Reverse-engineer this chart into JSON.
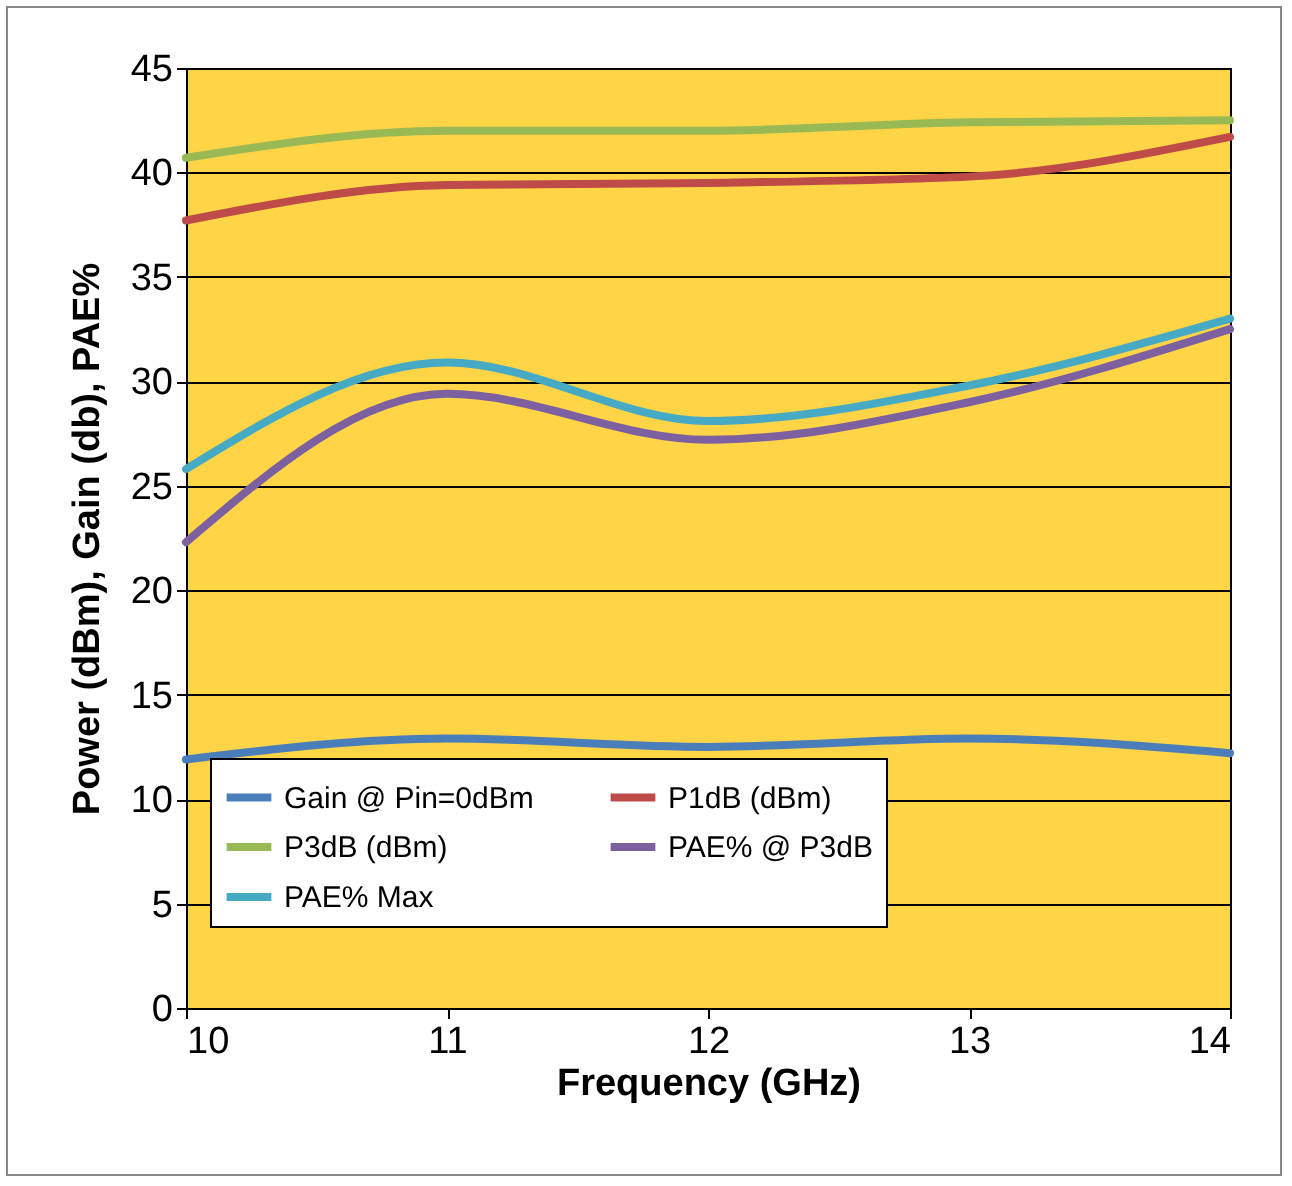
{
  "chart_data": {
    "type": "line",
    "xlabel": "Frequency (GHz)",
    "ylabel": "Power (dBm), Gain (db),  PAE%",
    "x": [
      10,
      11,
      12,
      13,
      14
    ],
    "series": [
      {
        "name": "Gain @ Pin=0dBm",
        "color": "#4a7ebb",
        "values": [
          11.9,
          12.9,
          12.5,
          12.9,
          12.2
        ]
      },
      {
        "name": "P1dB (dBm)",
        "color": "#be4b48",
        "values": [
          37.7,
          39.4,
          39.5,
          39.8,
          41.7
        ]
      },
      {
        "name": "P3dB (dBm)",
        "color": "#98b954",
        "values": [
          40.7,
          42.0,
          42.0,
          42.4,
          42.5
        ]
      },
      {
        "name": "PAE% @ P3dB",
        "color": "#7d60a0",
        "values": [
          22.3,
          29.4,
          27.2,
          29.0,
          32.5
        ]
      },
      {
        "name": "PAE% Max",
        "color": "#46aac5",
        "values": [
          25.8,
          30.9,
          28.1,
          29.8,
          33.0
        ]
      }
    ],
    "xlim": [
      10,
      14
    ],
    "xticks": [
      10,
      11,
      12,
      13,
      14
    ],
    "ylim": [
      0,
      45
    ],
    "yticks": [
      0,
      5,
      10,
      15,
      20,
      25,
      30,
      35,
      40,
      45
    ],
    "grid": "y",
    "legend": "bottom",
    "line_style": "solid",
    "marker": "none"
  }
}
